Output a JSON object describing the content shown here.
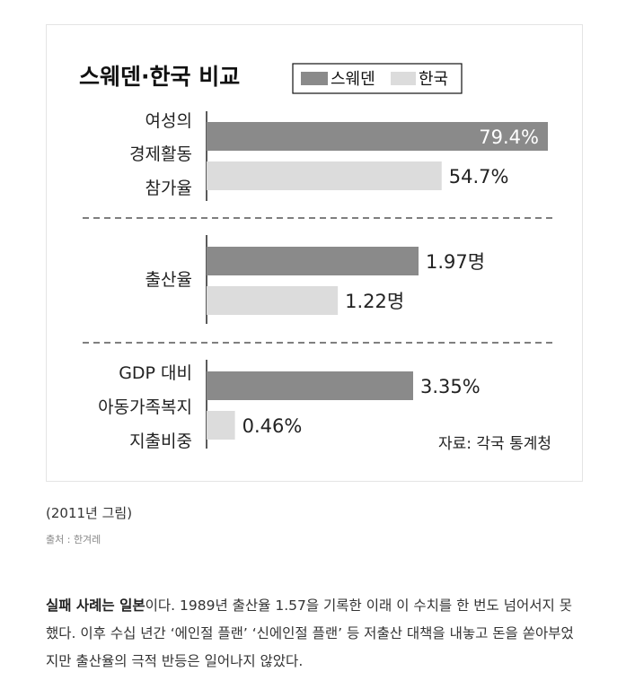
{
  "chart_data": {
    "type": "bar",
    "orientation": "horizontal",
    "title": "스웨덴·한국 비교",
    "legend": [
      "스웨덴",
      "한국"
    ],
    "legend_position": "top-right",
    "series_colors": {
      "스웨덴": "#8a8a8a",
      "한국": "#dcdcdc"
    },
    "groups": [
      {
        "label_lines": [
          "여성의",
          "경제활동",
          "참가율"
        ],
        "values": [
          79.4,
          54.7
        ],
        "value_labels": [
          "79.4%",
          "54.7%"
        ]
      },
      {
        "label_lines": [
          "출산율"
        ],
        "values": [
          1.97,
          1.22
        ],
        "value_labels": [
          "1.97명",
          "1.22명"
        ]
      },
      {
        "label_lines": [
          "GDP 대비",
          "아동가족복지",
          "지출비중"
        ],
        "values": [
          3.35,
          0.46
        ],
        "value_labels": [
          "3.35%",
          "0.46%"
        ]
      }
    ],
    "source_note": "자료: 각국 통계청"
  },
  "caption": "(2011년 그림)",
  "source": "출처 : 한겨레",
  "paragraph": {
    "bold_lead": "실패 사례는 일본",
    "text": "이다. 1989년 출산율 1.57을 기록한 이래 이 수치를 한 번도 넘어서지 못했다. 이후 수십 년간 ‘에인절 플랜’ ‘신에인절 플랜’ 등 저출산 대책을 내놓고 돈을 쏟아부었지만 출산율의 극적 반등은 일어나지 않았다."
  }
}
